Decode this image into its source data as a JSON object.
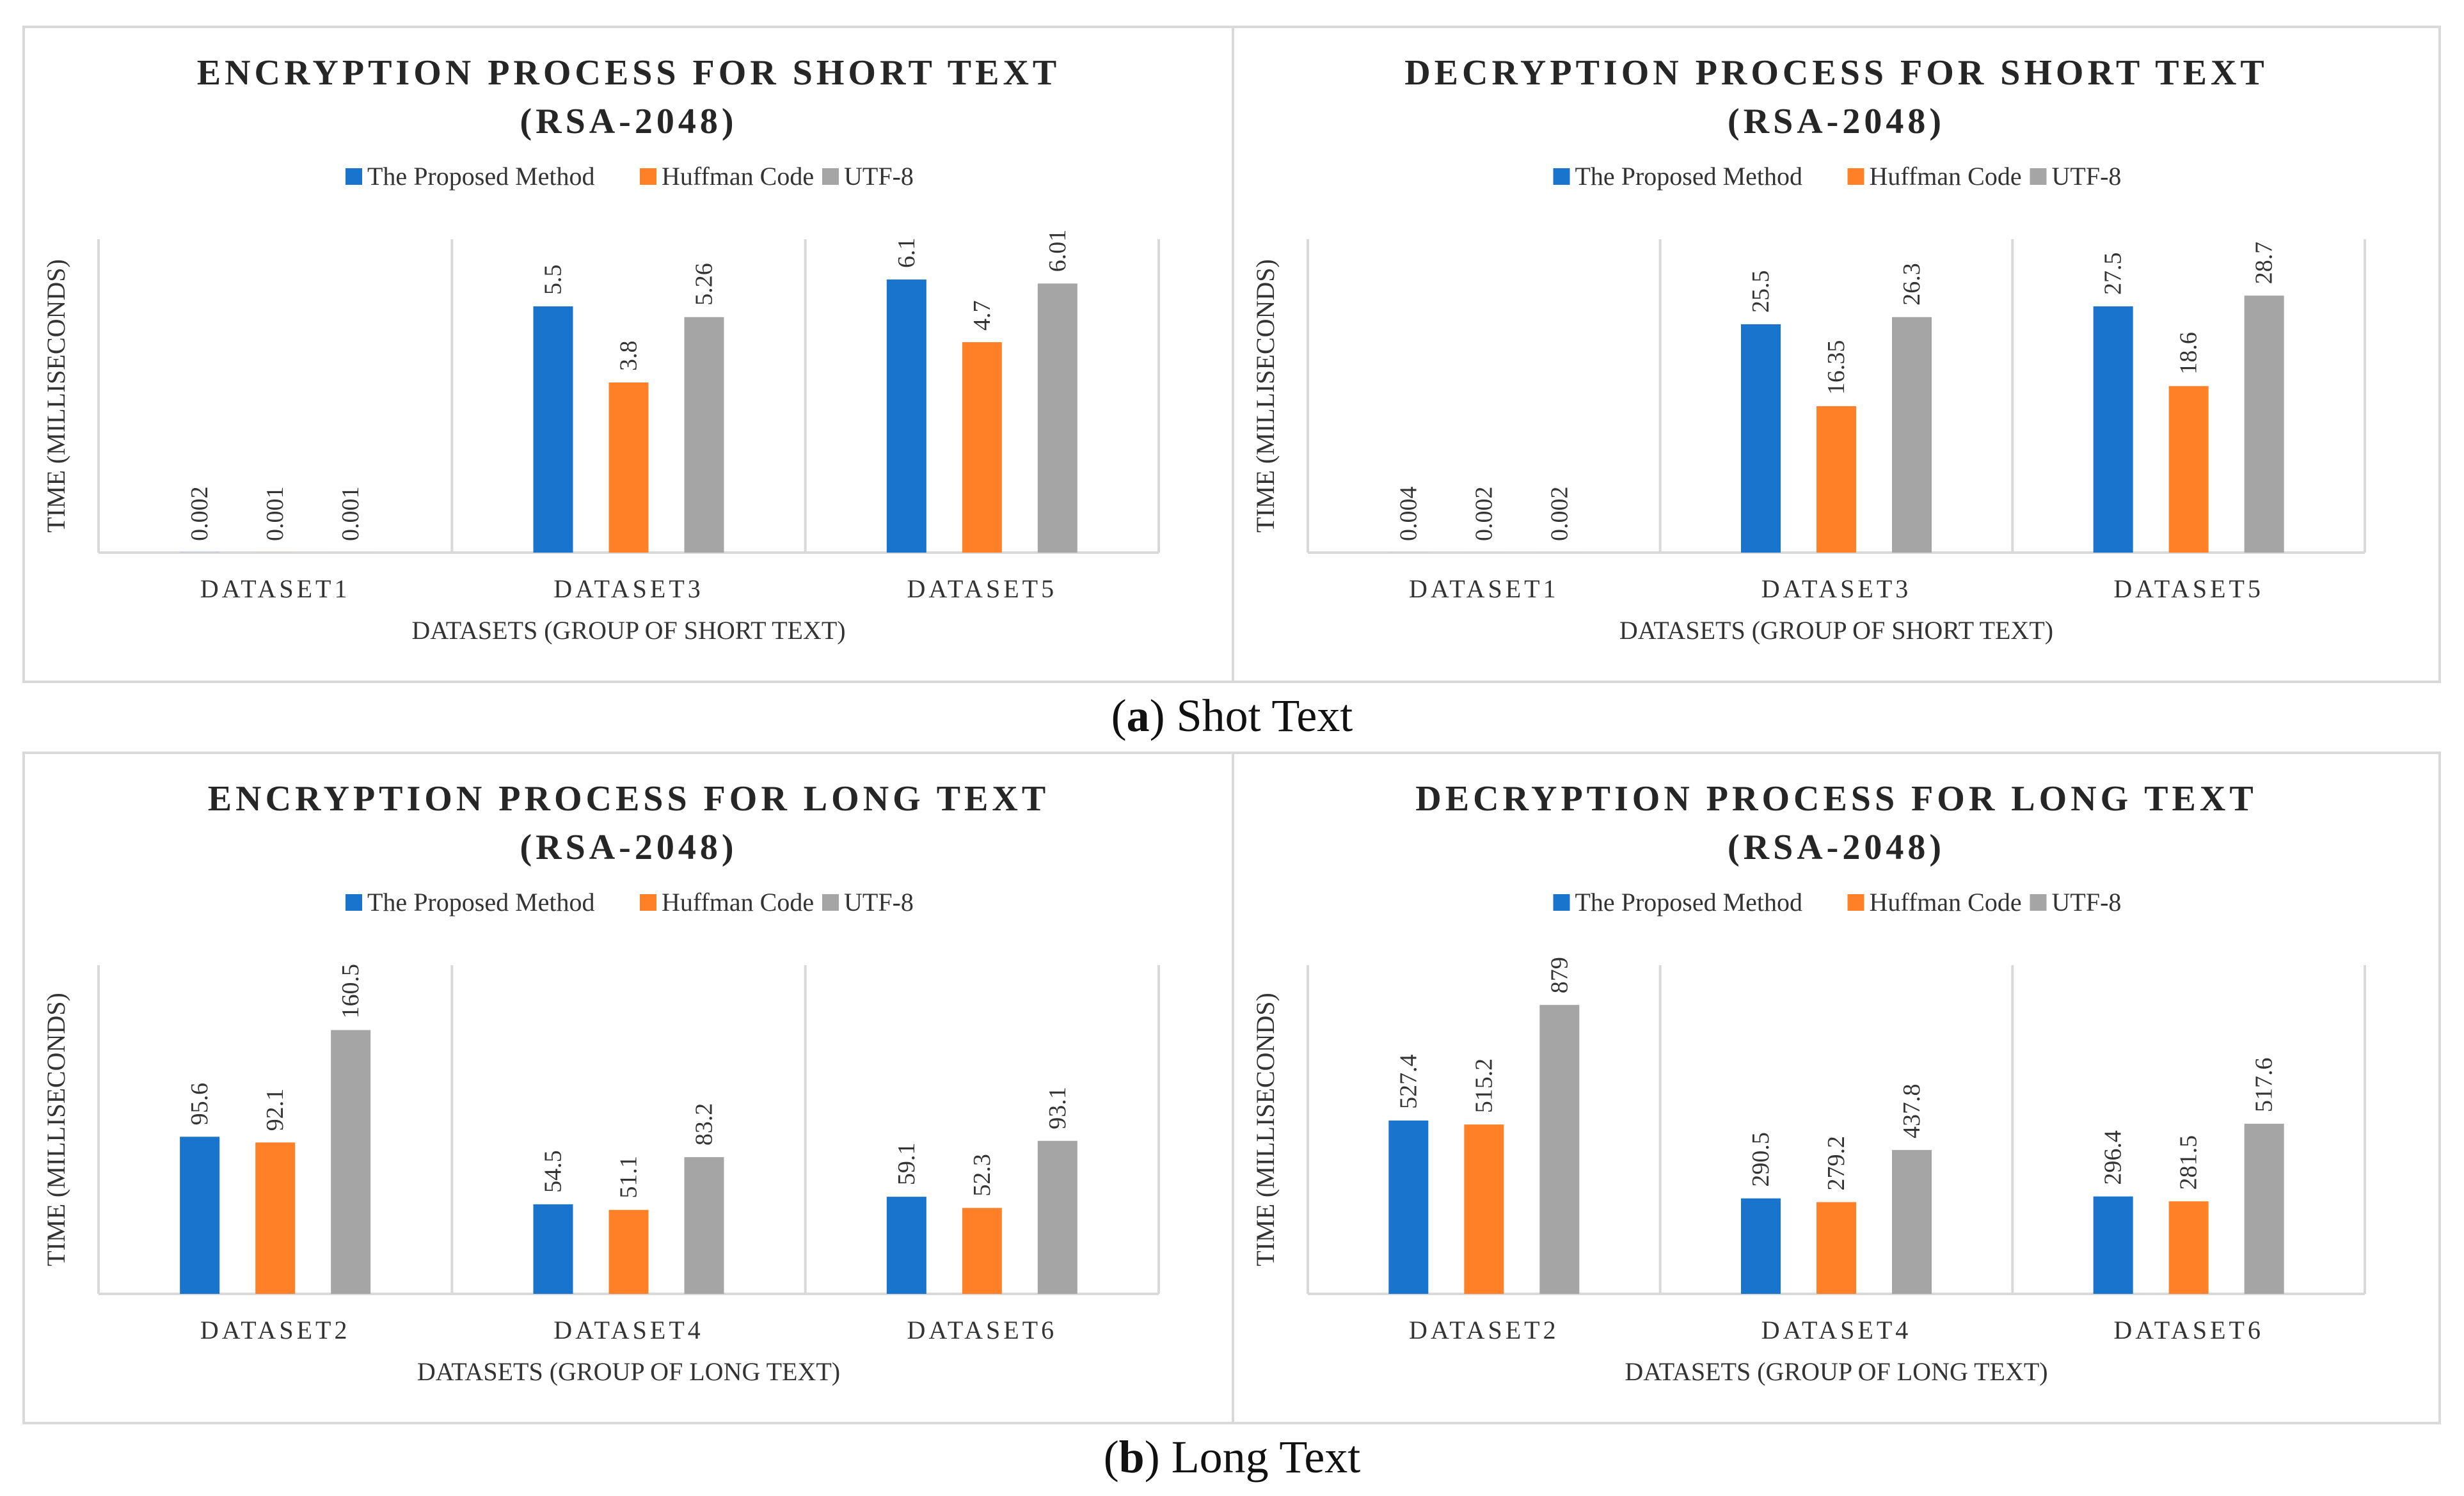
{
  "captions": {
    "a": {
      "letter": "a",
      "text": " Shot Text"
    },
    "b": {
      "letter": "b",
      "text": " Long Text"
    }
  },
  "colors": {
    "proposed": "#1874CD",
    "huffman": "#FF8027",
    "utf8": "#A5A5A5",
    "axis": "#d9d9d9",
    "text": "#222222"
  },
  "chart_data": [
    {
      "type": "bar",
      "title": [
        "ENCRYPTION PROCESS FOR SHORT TEXT",
        "(RSA-2048)"
      ],
      "xlabel": "DATASETS (GROUP OF SHORT TEXT)",
      "ylabel": "TIME (MILLISECONDS)",
      "categories": [
        "DATASET1",
        "DATASET3",
        "DATASET5"
      ],
      "ylim": [
        0,
        7
      ],
      "series": [
        {
          "name": "The Proposed Method",
          "values": [
            0.002,
            5.5,
            6.1
          ],
          "labels": [
            "0.002",
            "5.5",
            "6.1"
          ]
        },
        {
          "name": "Huffman Code",
          "values": [
            0.001,
            3.8,
            4.7
          ],
          "labels": [
            "0.001",
            "3.8",
            "4.7"
          ]
        },
        {
          "name": "UTF-8",
          "values": [
            0.001,
            5.26,
            6.01
          ],
          "labels": [
            "0.001",
            "5.26",
            "6.01"
          ]
        }
      ]
    },
    {
      "type": "bar",
      "title": [
        "DECRYPTION PROCESS FOR SHORT TEXT",
        "(RSA-2048)"
      ],
      "xlabel": "DATASETS (GROUP OF SHORT TEXT)",
      "ylabel": "TIME (MILLISECONDS)",
      "categories": [
        "DATASET1",
        "DATASET3",
        "DATASET5"
      ],
      "ylim": [
        0,
        35
      ],
      "series": [
        {
          "name": "The Proposed Method",
          "values": [
            0.004,
            25.5,
            27.5
          ],
          "labels": [
            "0.004",
            "25.5",
            "27.5"
          ]
        },
        {
          "name": "Huffman Code",
          "values": [
            0.002,
            16.35,
            18.6
          ],
          "labels": [
            "0.002",
            "16.35",
            "18.6"
          ]
        },
        {
          "name": "UTF-8",
          "values": [
            0.002,
            26.3,
            28.7
          ],
          "labels": [
            "0.002",
            "26.3",
            "28.7"
          ]
        }
      ]
    },
    {
      "type": "bar",
      "title": [
        "ENCRYPTION PROCESS FOR LONG TEXT",
        "(RSA-2048)"
      ],
      "xlabel": "DATASETS (GROUP OF LONG TEXT)",
      "ylabel": "TIME (MILLISECONDS)",
      "categories": [
        "DATASET2",
        "DATASET4",
        "DATASET6"
      ],
      "ylim": [
        0,
        200
      ],
      "series": [
        {
          "name": "The Proposed Method",
          "values": [
            95.6,
            54.5,
            59.1
          ],
          "labels": [
            "95.6",
            "54.5",
            "59.1"
          ]
        },
        {
          "name": "Huffman Code",
          "values": [
            92.1,
            51.1,
            52.3
          ],
          "labels": [
            "92.1",
            "51.1",
            "52.3"
          ]
        },
        {
          "name": "UTF-8",
          "values": [
            160.5,
            83.2,
            93.1
          ],
          "labels": [
            "160.5",
            "83.2",
            "93.1"
          ]
        }
      ]
    },
    {
      "type": "bar",
      "title": [
        "DECRYPTION PROCESS FOR LONG TEXT",
        "(RSA-2048)"
      ],
      "xlabel": "DATASETS (GROUP OF LONG TEXT)",
      "ylabel": "TIME (MILLISECONDS)",
      "categories": [
        "DATASET2",
        "DATASET4",
        "DATASET6"
      ],
      "ylim": [
        0,
        1000
      ],
      "series": [
        {
          "name": "The Proposed Method",
          "values": [
            527.4,
            290.5,
            296.4
          ],
          "labels": [
            "527.4",
            "290.5",
            "296.4"
          ]
        },
        {
          "name": "Huffman Code",
          "values": [
            515.2,
            279.2,
            281.5
          ],
          "labels": [
            "515.2",
            "279.2",
            "281.5"
          ]
        },
        {
          "name": "UTF-8",
          "values": [
            879,
            437.8,
            517.6
          ],
          "labels": [
            "879",
            "437.8",
            "517.6"
          ]
        }
      ]
    }
  ]
}
